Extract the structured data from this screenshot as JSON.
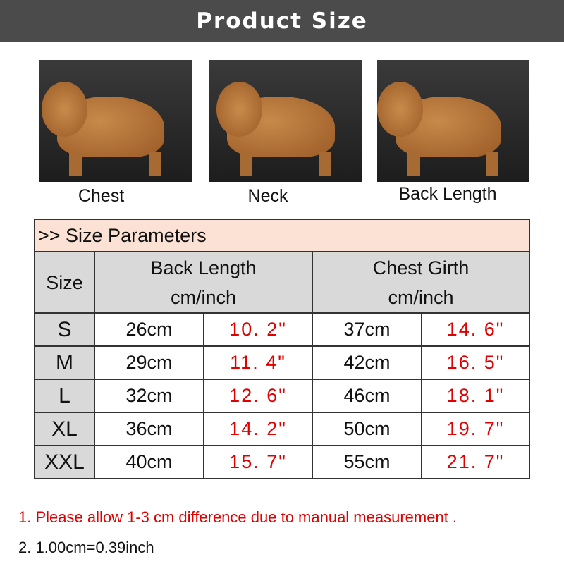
{
  "header": {
    "title": "Product Size"
  },
  "photos": [
    {
      "label": "Chest",
      "icon": "dog-chest-photo"
    },
    {
      "label": "Neck",
      "icon": "dog-neck-photo"
    },
    {
      "label": "Back Length",
      "icon": "dog-back-photo"
    }
  ],
  "table": {
    "title": ">> Size Parameters",
    "headers": {
      "size": "Size",
      "back_length": "Back Length",
      "chest_girth": "Chest Girth",
      "unit": "cm/inch"
    },
    "rows": [
      {
        "size": "S",
        "back_cm": "26cm",
        "back_in": "10. 2\"",
        "chest_cm": "37cm",
        "chest_in": "14. 6\""
      },
      {
        "size": "M",
        "back_cm": "29cm",
        "back_in": "11. 4\"",
        "chest_cm": "42cm",
        "chest_in": "16. 5\""
      },
      {
        "size": "L",
        "back_cm": "32cm",
        "back_in": "12. 6\"",
        "chest_cm": "46cm",
        "chest_in": "18. 1\""
      },
      {
        "size": "XL",
        "back_cm": "36cm",
        "back_in": "14. 2\"",
        "chest_cm": "50cm",
        "chest_in": "19. 7\""
      },
      {
        "size": "XXL",
        "back_cm": "40cm",
        "back_in": "15. 7\"",
        "chest_cm": "55cm",
        "chest_in": "21. 7\""
      }
    ]
  },
  "notes": [
    "1. Please allow 1-3 cm difference due to manual measurement .",
    "2. 1.00cm=0.39inch"
  ],
  "colors": {
    "header_bg": "#4b4b4b",
    "title_row": "#fbe2d4",
    "header_row": "#d9d9d9",
    "inch": "#e00000"
  }
}
